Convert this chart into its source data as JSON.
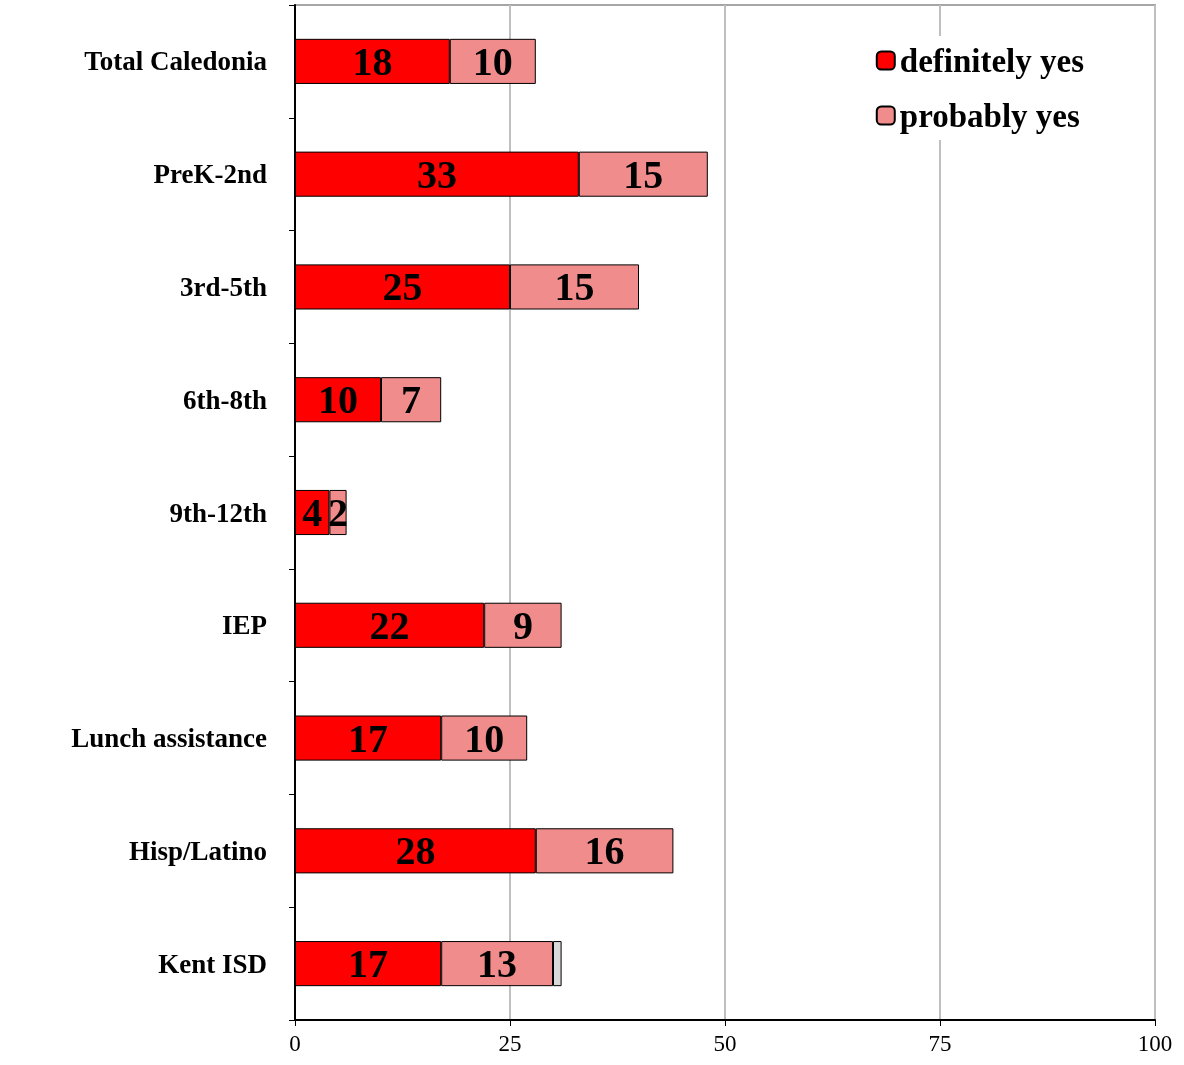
{
  "chart_data": {
    "type": "bar",
    "orientation": "horizontal",
    "stacked": true,
    "categories": [
      "Total Caledonia",
      "PreK-2nd",
      "3rd-5th",
      "6th-8th",
      "9th-12th",
      "IEP",
      "Lunch assistance",
      "Hisp/Latino",
      "Kent ISD"
    ],
    "series": [
      {
        "name": "definitely yes",
        "color": "#ff0000",
        "values": [
          18,
          33,
          25,
          10,
          4,
          22,
          17,
          28,
          17
        ]
      },
      {
        "name": "probably yes",
        "color": "#f08c8c",
        "values": [
          10,
          15,
          15,
          7,
          2,
          9,
          10,
          16,
          13
        ]
      },
      {
        "color": "#d9d9d9",
        "values": [
          null,
          null,
          null,
          null,
          null,
          null,
          null,
          null,
          1
        ],
        "value_labels": [
          null,
          null,
          null,
          null,
          null,
          null,
          null,
          null,
          null
        ]
      }
    ],
    "xlim": [
      0,
      100
    ],
    "xticks": [
      0,
      25,
      50,
      75,
      100
    ],
    "grid": "x",
    "legend": "top right",
    "data_labels": true
  }
}
